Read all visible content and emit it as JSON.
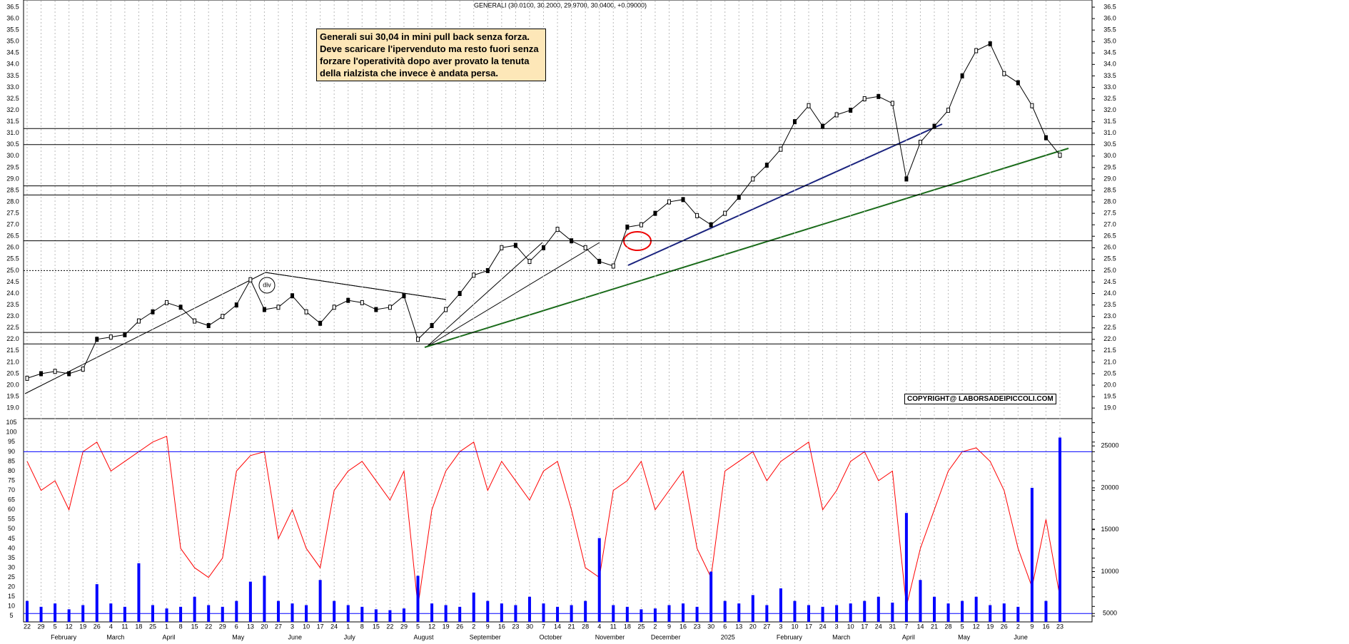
{
  "chart_data": [
    {
      "type": "line",
      "title": "GENERALI (30.0100, 30.2000, 29.9700, 30.0400, +0.09000)",
      "annotation": [
        "Generali sui 30,04 in mini pull back senza forza.",
        "Deve scaricare l'ipervenduto ma resto fuori senza",
        "forzare l'operatività dopo aver provato la tenuta",
        "della rialzista che invece è andata persa."
      ],
      "copyright": "COPYRIGHT@ LABORSADEIPICCOLI.COM",
      "marker_label": "div",
      "categories": [
        "22",
        "29",
        "5",
        "12",
        "19",
        "26",
        "4",
        "11",
        "18",
        "25",
        "1",
        "8",
        "15",
        "22",
        "29",
        "6",
        "13",
        "20",
        "27",
        "3",
        "10",
        "17",
        "24",
        "1",
        "8",
        "15",
        "22",
        "29",
        "5",
        "12",
        "19",
        "26",
        "2",
        "9",
        "16",
        "23",
        "30",
        "7",
        "14",
        "21",
        "28",
        "4",
        "11",
        "18",
        "25",
        "2",
        "9",
        "16",
        "23",
        "30",
        "6",
        "13",
        "20",
        "27",
        "3",
        "10",
        "17",
        "24",
        "3",
        "10",
        "17",
        "24",
        "31",
        "7",
        "14",
        "21",
        "28",
        "5",
        "12",
        "19",
        "26",
        "2",
        "9",
        "16",
        "23"
      ],
      "month_labels": [
        null,
        null,
        "February",
        null,
        null,
        null,
        "March",
        null,
        null,
        null,
        "April",
        null,
        null,
        null,
        null,
        "May",
        null,
        null,
        null,
        "June",
        null,
        null,
        null,
        "July",
        null,
        null,
        null,
        null,
        "August",
        null,
        null,
        null,
        "September",
        null,
        null,
        null,
        null,
        "October",
        null,
        null,
        null,
        "November",
        null,
        null,
        null,
        "December",
        null,
        null,
        null,
        null,
        "2025",
        null,
        null,
        null,
        "February",
        null,
        null,
        null,
        "March",
        null,
        null,
        null,
        null,
        "April",
        null,
        null,
        null,
        "May",
        null,
        null,
        null,
        "June",
        null,
        null,
        null
      ],
      "series": [
        {
          "name": "GENERALI",
          "color": "#000000",
          "values": [
            20.3,
            20.5,
            20.6,
            20.5,
            20.7,
            22.0,
            22.1,
            22.2,
            22.8,
            23.2,
            23.6,
            23.4,
            22.8,
            22.6,
            23.0,
            23.5,
            24.6,
            23.3,
            23.4,
            23.9,
            23.2,
            22.7,
            23.4,
            23.7,
            23.6,
            23.3,
            23.4,
            23.9,
            22.0,
            22.6,
            23.3,
            24.0,
            24.8,
            25.0,
            26.0,
            26.1,
            25.4,
            26.0,
            26.8,
            26.3,
            26.0,
            25.4,
            25.2,
            26.9,
            27.0,
            27.5,
            28.0,
            28.1,
            27.4,
            27.0,
            27.5,
            28.2,
            29.0,
            29.6,
            30.3,
            31.5,
            32.2,
            31.3,
            31.8,
            32.0,
            32.5,
            32.6,
            32.3,
            29.0,
            30.6,
            31.3,
            32.0,
            33.5,
            34.6,
            34.9,
            33.6,
            33.2,
            32.2,
            30.8,
            30.04
          ]
        }
      ],
      "levels": [
        21.8,
        22.3,
        25.0,
        26.3,
        28.3,
        28.7,
        30.5,
        31.2
      ],
      "ylim": [
        18.6,
        36.75
      ],
      "yticks": [
        {
          "value": 19,
          "label": "19.0"
        },
        19.5,
        {
          "value": 20,
          "label": "20.0"
        },
        20.5,
        {
          "value": 21,
          "label": "21.0"
        },
        21.5,
        {
          "value": 22,
          "label": "22.0"
        },
        22.5,
        {
          "value": 23,
          "label": "23.0"
        },
        23.5,
        {
          "value": 24,
          "label": "24.0"
        },
        24.5,
        {
          "value": 25,
          "label": "25.0"
        },
        25.5,
        {
          "value": 26,
          "label": "26.0"
        },
        26.5,
        {
          "value": 27,
          "label": "27.0"
        },
        27.5,
        {
          "value": 28,
          "label": "28.0"
        },
        28.5,
        {
          "value": 29,
          "label": "29.0"
        },
        29.5,
        {
          "value": 30,
          "label": "30.0"
        },
        30.5,
        {
          "value": 31,
          "label": "31.0"
        },
        31.5,
        {
          "value": 32,
          "label": "32.0"
        },
        32.5,
        {
          "value": 33,
          "label": "33.0"
        },
        33.5,
        {
          "value": 34,
          "label": "34.0"
        },
        34.5,
        {
          "value": 35,
          "label": "35.0"
        },
        35.5,
        {
          "value": 36,
          "label": "36.0"
        },
        36.5
      ],
      "grid": true
    },
    {
      "type": "line",
      "series": [
        {
          "name": "Oscillator",
          "color": "#ff0000",
          "values": [
            85,
            70,
            75,
            60,
            90,
            95,
            80,
            85,
            90,
            95,
            98,
            40,
            30,
            25,
            35,
            80,
            88,
            90,
            45,
            60,
            40,
            30,
            70,
            80,
            85,
            75,
            65,
            80,
            10,
            60,
            80,
            90,
            95,
            70,
            85,
            75,
            65,
            80,
            85,
            60,
            30,
            25,
            70,
            75,
            85,
            60,
            70,
            80,
            40,
            25,
            80,
            85,
            90,
            75,
            85,
            90,
            95,
            60,
            70,
            85,
            90,
            75,
            80,
            10,
            40,
            60,
            80,
            90,
            92,
            85,
            70,
            40,
            20,
            55,
            15
          ]
        },
        {
          "name": "Volume",
          "color": "#0000ff",
          "axis": "y2",
          "values": [
            6500,
            5800,
            6200,
            5500,
            6000,
            8500,
            6200,
            5800,
            11000,
            6000,
            5600,
            5800,
            7000,
            6000,
            5800,
            6500,
            8800,
            9500,
            6500,
            6200,
            6000,
            9000,
            6500,
            6000,
            5800,
            5500,
            5400,
            5600,
            9500,
            6200,
            6000,
            5800,
            7500,
            6500,
            6200,
            6000,
            7000,
            6200,
            5800,
            6000,
            6500,
            14000,
            6000,
            5800,
            5500,
            5600,
            6000,
            6200,
            5800,
            10000,
            6500,
            6200,
            7200,
            6000,
            8000,
            6500,
            6000,
            5800,
            6000,
            6200,
            6500,
            7000,
            6300,
            17000,
            9000,
            7000,
            6200,
            6500,
            7000,
            6000,
            6200,
            5800,
            20000,
            6500,
            26000
          ]
        }
      ],
      "levels": [
        90
      ],
      "y2levels": [
        5000
      ],
      "ylim": [
        2,
        106
      ],
      "yticks": [
        5,
        10,
        15,
        20,
        25,
        30,
        35,
        40,
        45,
        50,
        55,
        60,
        65,
        70,
        75,
        80,
        85,
        90,
        95,
        100,
        105
      ],
      "y2lim": [
        4000,
        28000
      ],
      "y2ticks": [
        5000,
        10000,
        15000,
        20000,
        25000
      ]
    }
  ]
}
